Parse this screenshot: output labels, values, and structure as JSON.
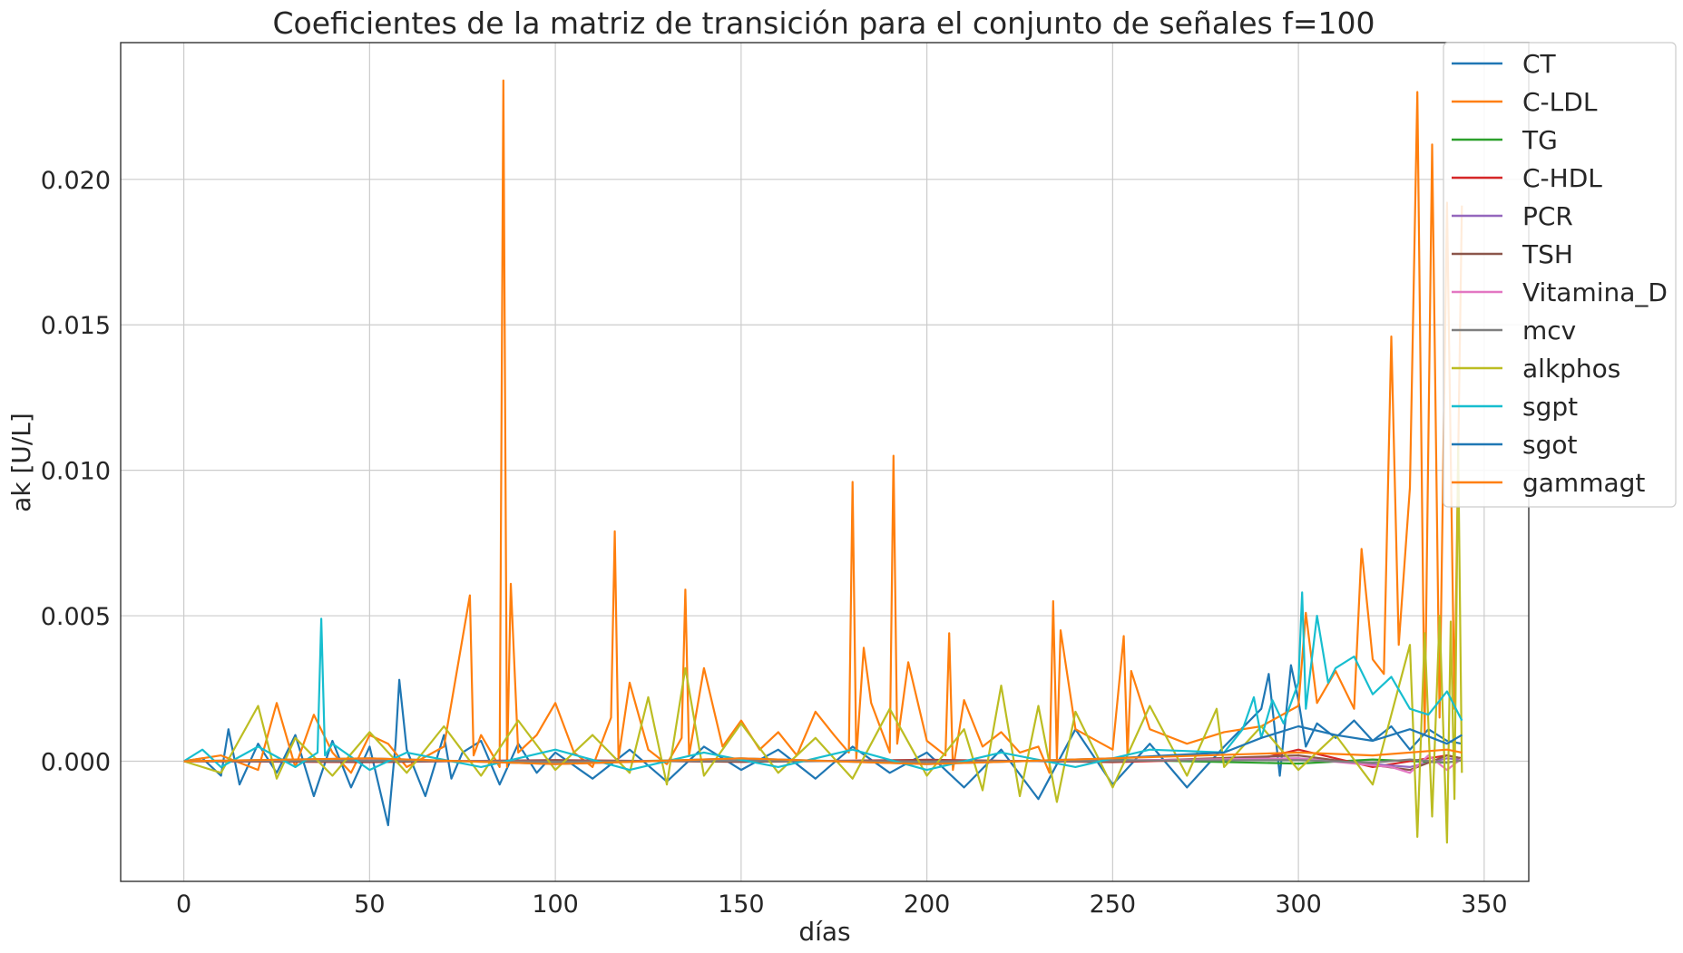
{
  "chart_data": {
    "type": "line",
    "title": "Coeficientes de la matriz de transición para el conjunto de señales f=100",
    "xlabel": "días",
    "ylabel": "ak  [U/L]",
    "xlim": [
      -17,
      362
    ],
    "ylim": [
      -0.00413,
      0.0247
    ],
    "xticks": [
      0,
      50,
      100,
      150,
      200,
      250,
      300,
      350
    ],
    "xtick_labels": [
      "0",
      "50",
      "100",
      "150",
      "200",
      "250",
      "300",
      "350"
    ],
    "yticks": [
      0.0,
      0.005,
      0.01,
      0.015,
      0.02
    ],
    "ytick_labels": [
      "0.000",
      "0.005",
      "0.010",
      "0.015",
      "0.020"
    ],
    "grid": true,
    "legend_position": "top-right",
    "series": [
      {
        "name": "CT",
        "color": "#1f77b4",
        "x": [
          0,
          5,
          10,
          12,
          15,
          20,
          25,
          30,
          35,
          40,
          45,
          50,
          55,
          57,
          58,
          60,
          65,
          70,
          72,
          75,
          80,
          85,
          90,
          95,
          100,
          110,
          120,
          130,
          140,
          150,
          160,
          170,
          180,
          190,
          200,
          210,
          220,
          230,
          240,
          250,
          260,
          270,
          280,
          290,
          292,
          295,
          298,
          300,
          302,
          305,
          310,
          315,
          320,
          325,
          330,
          335,
          340,
          344
        ],
        "y": [
          0,
          0.0001,
          -0.0005,
          0.0011,
          -0.0008,
          0.0006,
          -0.0004,
          0.0009,
          -0.0012,
          0.0007,
          -0.0009,
          0.0005,
          -0.0022,
          0.0006,
          0.0028,
          0.0004,
          -0.0012,
          0.0009,
          -0.0006,
          0.0003,
          0.0007,
          -0.0008,
          0.0006,
          -0.0004,
          0.0003,
          -0.0006,
          0.0004,
          -0.0007,
          0.0005,
          -0.0003,
          0.0004,
          -0.0006,
          0.0005,
          -0.0004,
          0.0003,
          -0.0009,
          0.0004,
          -0.0013,
          0.0011,
          -0.0008,
          0.0006,
          -0.0009,
          0.0005,
          0.0018,
          0.003,
          -0.0005,
          0.0033,
          0.0021,
          0.0005,
          0.0013,
          0.0008,
          0.0014,
          0.0007,
          0.0012,
          0.0004,
          0.0011,
          0.0007,
          0.0006
        ]
      },
      {
        "name": "C-LDL",
        "color": "#ff7f0e",
        "x": [
          0,
          10,
          20,
          25,
          30,
          35,
          40,
          45,
          50,
          55,
          60,
          70,
          77,
          78,
          80,
          85,
          86,
          87,
          88,
          90,
          95,
          100,
          105,
          110,
          115,
          116,
          117,
          120,
          125,
          130,
          134,
          135,
          136,
          140,
          145,
          150,
          155,
          160,
          165,
          170,
          175,
          179,
          180,
          181,
          183,
          185,
          190,
          191,
          192,
          195,
          200,
          205,
          206,
          207,
          210,
          215,
          220,
          225,
          230,
          233,
          234,
          235,
          236,
          240,
          250,
          253,
          254,
          255,
          260,
          270,
          280,
          290,
          300,
          302,
          305,
          310,
          315,
          317,
          320,
          323,
          325,
          327,
          330,
          332,
          334,
          336,
          338,
          340,
          342,
          344
        ],
        "y": [
          0,
          0.0002,
          -0.0003,
          0.002,
          -0.0002,
          0.0016,
          0.0003,
          -0.0004,
          0.0009,
          0.0006,
          -0.0002,
          0.0005,
          0.0057,
          0.0002,
          0.0009,
          -0.0002,
          0.0234,
          -0.0002,
          0.0061,
          0.0003,
          0.0009,
          0.002,
          0.0003,
          -0.0002,
          0.0015,
          0.0079,
          0.0001,
          0.0027,
          0.0004,
          -0.0001,
          0.0008,
          0.0059,
          0.0002,
          0.0032,
          0.0005,
          0.0014,
          0.0004,
          0.001,
          0.0002,
          0.0017,
          0.0009,
          0.0003,
          0.0096,
          0.0001,
          0.0039,
          0.002,
          0.0003,
          0.0105,
          0.0006,
          0.0034,
          0.0007,
          0.0002,
          0.0044,
          -0.0003,
          0.0021,
          0.0005,
          0.001,
          0.0003,
          0.0005,
          -0.0004,
          0.0055,
          0.0001,
          0.0045,
          0.0011,
          0.0004,
          0.0043,
          0.0002,
          0.0031,
          0.0011,
          0.0006,
          0.001,
          0.0012,
          0.0019,
          0.0051,
          0.002,
          0.0031,
          0.0018,
          0.0073,
          0.0035,
          0.003,
          0.0146,
          0.004,
          0.0094,
          0.023,
          0.001,
          0.0212,
          0.0015,
          0.0192,
          0.0018,
          0.0191
        ]
      },
      {
        "name": "TG",
        "color": "#2ca02c",
        "x": [
          0,
          50,
          100,
          150,
          200,
          250,
          300,
          320,
          340,
          344
        ],
        "y": [
          0,
          5e-05,
          -3e-05,
          6e-05,
          -4e-05,
          5e-05,
          -8e-05,
          6e-05,
          -5e-05,
          4e-05
        ]
      },
      {
        "name": "C-HDL",
        "color": "#d62728",
        "x": [
          0,
          50,
          100,
          150,
          200,
          250,
          290,
          300,
          320,
          340,
          344
        ],
        "y": [
          0,
          -3e-05,
          4e-05,
          -2e-05,
          5e-05,
          -3e-05,
          0.0001,
          0.0004,
          -0.0002,
          0.0002,
          0.0001
        ]
      },
      {
        "name": "PCR",
        "color": "#9467bd",
        "x": [
          0,
          50,
          100,
          150,
          200,
          250,
          300,
          330,
          340,
          344
        ],
        "y": [
          0,
          2e-05,
          -2e-05,
          3e-05,
          -2e-05,
          2e-05,
          0.0001,
          -0.0002,
          0.0001,
          5e-05
        ]
      },
      {
        "name": "TSH",
        "color": "#8c564b",
        "x": [
          0,
          50,
          100,
          150,
          200,
          250,
          300,
          330,
          340,
          344
        ],
        "y": [
          0,
          -2e-05,
          3e-05,
          -2e-05,
          3e-05,
          -2e-05,
          0.0002,
          -0.0003,
          0.0002,
          0.0001
        ]
      },
      {
        "name": "Vitamina_D",
        "color": "#e377c2",
        "x": [
          0,
          50,
          100,
          150,
          200,
          250,
          300,
          325,
          330,
          335,
          340,
          344
        ],
        "y": [
          0,
          3e-05,
          -2e-05,
          3e-05,
          -2e-05,
          2e-05,
          0.0001,
          -0.0002,
          -0.0004,
          0.0002,
          -0.0003,
          0.0001
        ]
      },
      {
        "name": "mcv",
        "color": "#7f7f7f",
        "x": [
          0,
          50,
          100,
          150,
          200,
          250,
          300,
          320,
          330,
          340,
          344
        ],
        "y": [
          0,
          2e-05,
          -2e-05,
          2e-05,
          -2e-05,
          2e-05,
          4e-05,
          -5e-05,
          6e-05,
          -4e-05,
          2e-05
        ]
      },
      {
        "name": "alkphos",
        "color": "#bcbd22",
        "x": [
          0,
          10,
          20,
          25,
          30,
          40,
          50,
          60,
          70,
          80,
          90,
          100,
          110,
          120,
          125,
          130,
          135,
          140,
          150,
          160,
          170,
          180,
          190,
          200,
          210,
          215,
          220,
          225,
          230,
          235,
          240,
          250,
          260,
          270,
          278,
          280,
          290,
          300,
          310,
          320,
          330,
          332,
          334,
          336,
          338,
          340,
          341,
          342,
          343,
          344
        ],
        "y": [
          0,
          -0.0004,
          0.0019,
          -0.0006,
          0.0008,
          -0.0005,
          0.001,
          -0.0004,
          0.0012,
          -0.0005,
          0.0014,
          -0.0003,
          0.0009,
          -0.0004,
          0.0022,
          -0.0008,
          0.0032,
          -0.0005,
          0.0013,
          -0.0004,
          0.0008,
          -0.0006,
          0.0018,
          -0.0005,
          0.0011,
          -0.001,
          0.0026,
          -0.0012,
          0.0019,
          -0.0014,
          0.0017,
          -0.0009,
          0.0019,
          -0.0005,
          0.0018,
          -0.0002,
          0.0012,
          -0.0003,
          0.0009,
          -0.0008,
          0.004,
          -0.0026,
          0.0044,
          -0.0019,
          0.005,
          -0.0028,
          0.0048,
          -0.0013,
          0.0108,
          -0.0004
        ]
      },
      {
        "name": "sgpt",
        "color": "#17becf",
        "x": [
          0,
          5,
          10,
          20,
          30,
          36,
          37,
          38,
          40,
          50,
          60,
          80,
          100,
          120,
          140,
          160,
          180,
          200,
          220,
          240,
          260,
          280,
          285,
          288,
          290,
          293,
          296,
          300,
          301,
          302,
          305,
          308,
          310,
          315,
          320,
          325,
          330,
          335,
          340,
          344
        ],
        "y": [
          0,
          0.0004,
          -0.0002,
          0.0005,
          -0.0002,
          0.0003,
          0.0049,
          0.0002,
          0.0006,
          -0.0003,
          0.0003,
          -0.0002,
          0.0004,
          -0.0003,
          0.0003,
          -0.0002,
          0.0004,
          -0.0003,
          0.0003,
          -0.0002,
          0.0004,
          0.0003,
          0.0011,
          0.0022,
          0.0008,
          0.0021,
          0.0013,
          0.0027,
          0.0058,
          0.0018,
          0.005,
          0.0027,
          0.0032,
          0.0036,
          0.0023,
          0.0029,
          0.0018,
          0.0016,
          0.0024,
          0.0014
        ]
      },
      {
        "name": "sgot",
        "color": "#1f77b4",
        "x": [
          0,
          50,
          100,
          150,
          200,
          250,
          280,
          290,
          300,
          310,
          320,
          330,
          340,
          344
        ],
        "y": [
          0,
          0.0001,
          -0.0001,
          0.0001,
          -0.0001,
          0.0001,
          0.0003,
          0.0008,
          0.0012,
          0.0009,
          0.0007,
          0.0011,
          0.0006,
          0.0009
        ]
      },
      {
        "name": "gammagt",
        "color": "#ff7f0e",
        "x": [
          0,
          50,
          100,
          150,
          200,
          250,
          300,
          320,
          340,
          344
        ],
        "y": [
          0,
          0.0001,
          -0.0001,
          0.0001,
          -0.0001,
          0.0001,
          0.0003,
          0.0002,
          0.0004,
          0.0003
        ]
      }
    ]
  }
}
